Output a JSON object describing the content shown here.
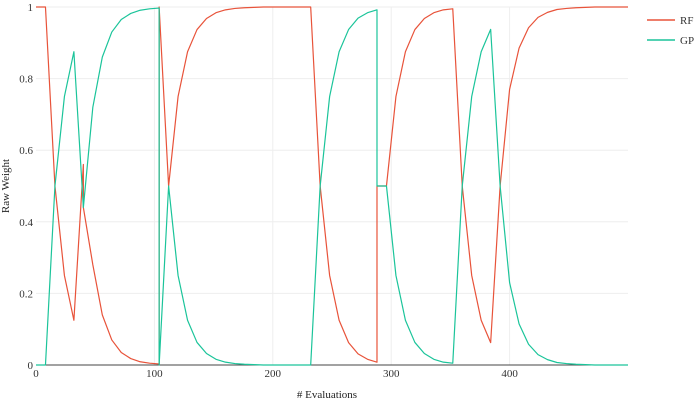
{
  "chart_data": {
    "type": "line",
    "title": "",
    "xlabel": "# Evaluations",
    "ylabel": "Raw Weight",
    "xlim": [
      0,
      500
    ],
    "ylim": [
      0,
      1
    ],
    "x_ticks": [
      0,
      100,
      200,
      300,
      400
    ],
    "y_ticks": [
      0,
      0.2,
      0.4,
      0.6,
      0.8,
      1
    ],
    "y_tick_labels": [
      "0",
      "0.2",
      "0.4",
      "0.6",
      "0.8",
      "1"
    ],
    "grid": true,
    "legend_position": "right",
    "series": [
      {
        "name": "RF",
        "color": "#e8533a",
        "points": [
          [
            0,
            1
          ],
          [
            8,
            1
          ],
          [
            16,
            0.5
          ],
          [
            24,
            0.25
          ],
          [
            32,
            0.125
          ],
          [
            40,
            0.56
          ],
          [
            40,
            0.44
          ],
          [
            48,
            0.28
          ],
          [
            56,
            0.14
          ],
          [
            64,
            0.07
          ],
          [
            72,
            0.035
          ],
          [
            80,
            0.018
          ],
          [
            88,
            0.009
          ],
          [
            96,
            0.005
          ],
          [
            104,
            0.003
          ],
          [
            104,
            1.0
          ],
          [
            112,
            0.5
          ],
          [
            120,
            0.75
          ],
          [
            128,
            0.875
          ],
          [
            136,
            0.937
          ],
          [
            144,
            0.968
          ],
          [
            152,
            0.984
          ],
          [
            160,
            0.992
          ],
          [
            168,
            0.996
          ],
          [
            176,
            0.998
          ],
          [
            184,
            0.999
          ],
          [
            192,
            1
          ],
          [
            232,
            1
          ],
          [
            240,
            0.5
          ],
          [
            248,
            0.25
          ],
          [
            256,
            0.125
          ],
          [
            264,
            0.0625
          ],
          [
            272,
            0.031
          ],
          [
            280,
            0.016
          ],
          [
            288,
            0.008
          ],
          [
            288,
            0.5
          ],
          [
            296,
            0.5
          ],
          [
            304,
            0.75
          ],
          [
            312,
            0.875
          ],
          [
            320,
            0.937
          ],
          [
            328,
            0.968
          ],
          [
            336,
            0.984
          ],
          [
            344,
            0.992
          ],
          [
            352,
            0.995
          ],
          [
            360,
            0.5
          ],
          [
            368,
            0.25
          ],
          [
            376,
            0.125
          ],
          [
            384,
            0.0625
          ],
          [
            392,
            0.5
          ],
          [
            400,
            0.77
          ],
          [
            408,
            0.885
          ],
          [
            416,
            0.942
          ],
          [
            424,
            0.971
          ],
          [
            432,
            0.985
          ],
          [
            440,
            0.993
          ],
          [
            448,
            0.996
          ],
          [
            456,
            0.998
          ],
          [
            464,
            0.999
          ],
          [
            472,
            1
          ],
          [
            500,
            1
          ]
        ]
      },
      {
        "name": "GP",
        "color": "#1bc49a",
        "points": [
          [
            0,
            0
          ],
          [
            8,
            0
          ],
          [
            16,
            0.5
          ],
          [
            24,
            0.75
          ],
          [
            32,
            0.875
          ],
          [
            40,
            0.44
          ],
          [
            48,
            0.72
          ],
          [
            56,
            0.86
          ],
          [
            64,
            0.93
          ],
          [
            72,
            0.965
          ],
          [
            80,
            0.982
          ],
          [
            88,
            0.991
          ],
          [
            96,
            0.995
          ],
          [
            104,
            0.997
          ],
          [
            104,
            0
          ],
          [
            112,
            0.5
          ],
          [
            120,
            0.25
          ],
          [
            128,
            0.125
          ],
          [
            136,
            0.063
          ],
          [
            144,
            0.032
          ],
          [
            152,
            0.016
          ],
          [
            160,
            0.008
          ],
          [
            168,
            0.004
          ],
          [
            176,
            0.002
          ],
          [
            184,
            0.001
          ],
          [
            192,
            0
          ],
          [
            232,
            0
          ],
          [
            240,
            0.5
          ],
          [
            248,
            0.75
          ],
          [
            256,
            0.875
          ],
          [
            264,
            0.937
          ],
          [
            272,
            0.969
          ],
          [
            280,
            0.984
          ],
          [
            288,
            0.992
          ],
          [
            288,
            0.5
          ],
          [
            296,
            0.5
          ],
          [
            304,
            0.25
          ],
          [
            312,
            0.125
          ],
          [
            320,
            0.063
          ],
          [
            328,
            0.032
          ],
          [
            336,
            0.016
          ],
          [
            344,
            0.008
          ],
          [
            352,
            0.005
          ],
          [
            360,
            0.5
          ],
          [
            368,
            0.75
          ],
          [
            376,
            0.875
          ],
          [
            384,
            0.9375
          ],
          [
            392,
            0.5
          ],
          [
            400,
            0.23
          ],
          [
            408,
            0.115
          ],
          [
            416,
            0.058
          ],
          [
            424,
            0.029
          ],
          [
            432,
            0.015
          ],
          [
            440,
            0.007
          ],
          [
            448,
            0.004
          ],
          [
            456,
            0.002
          ],
          [
            464,
            0.001
          ],
          [
            472,
            0
          ],
          [
            500,
            0
          ]
        ]
      }
    ]
  }
}
